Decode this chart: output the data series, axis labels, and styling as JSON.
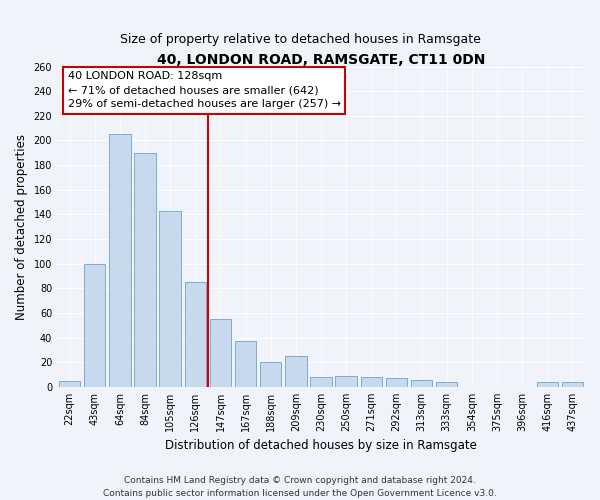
{
  "title": "40, LONDON ROAD, RAMSGATE, CT11 0DN",
  "subtitle": "Size of property relative to detached houses in Ramsgate",
  "xlabel": "Distribution of detached houses by size in Ramsgate",
  "ylabel": "Number of detached properties",
  "bar_labels": [
    "22sqm",
    "43sqm",
    "64sqm",
    "84sqm",
    "105sqm",
    "126sqm",
    "147sqm",
    "167sqm",
    "188sqm",
    "209sqm",
    "230sqm",
    "250sqm",
    "271sqm",
    "292sqm",
    "313sqm",
    "333sqm",
    "354sqm",
    "375sqm",
    "396sqm",
    "416sqm",
    "437sqm"
  ],
  "bar_values": [
    5,
    100,
    205,
    190,
    143,
    85,
    55,
    37,
    20,
    25,
    8,
    9,
    8,
    7,
    6,
    4,
    0,
    0,
    0,
    4,
    4
  ],
  "bar_color": "#c8d9ee",
  "bar_edge_color": "#7aadd4",
  "ylim": [
    0,
    260
  ],
  "yticks": [
    0,
    20,
    40,
    60,
    80,
    100,
    120,
    140,
    160,
    180,
    200,
    220,
    240,
    260
  ],
  "property_line_x": 5.5,
  "property_line_color": "#cc0000",
  "annotation_line1": "40 LONDON ROAD: 128sqm",
  "annotation_line2": "← 71% of detached houses are smaller (642)",
  "annotation_line3": "29% of semi-detached houses are larger (257) →",
  "annotation_box_color": "#ffffff",
  "annotation_box_edge": "#cc0000",
  "footnote1": "Contains HM Land Registry data © Crown copyright and database right 2024.",
  "footnote2": "Contains public sector information licensed under the Open Government Licence v3.0.",
  "bg_color": "#f0f4fa",
  "plot_bg_color": "#f0f4fa",
  "title_fontsize": 10,
  "subtitle_fontsize": 9,
  "axis_label_fontsize": 8.5,
  "tick_fontsize": 7,
  "annotation_fontsize": 8,
  "footnote_fontsize": 6.5
}
